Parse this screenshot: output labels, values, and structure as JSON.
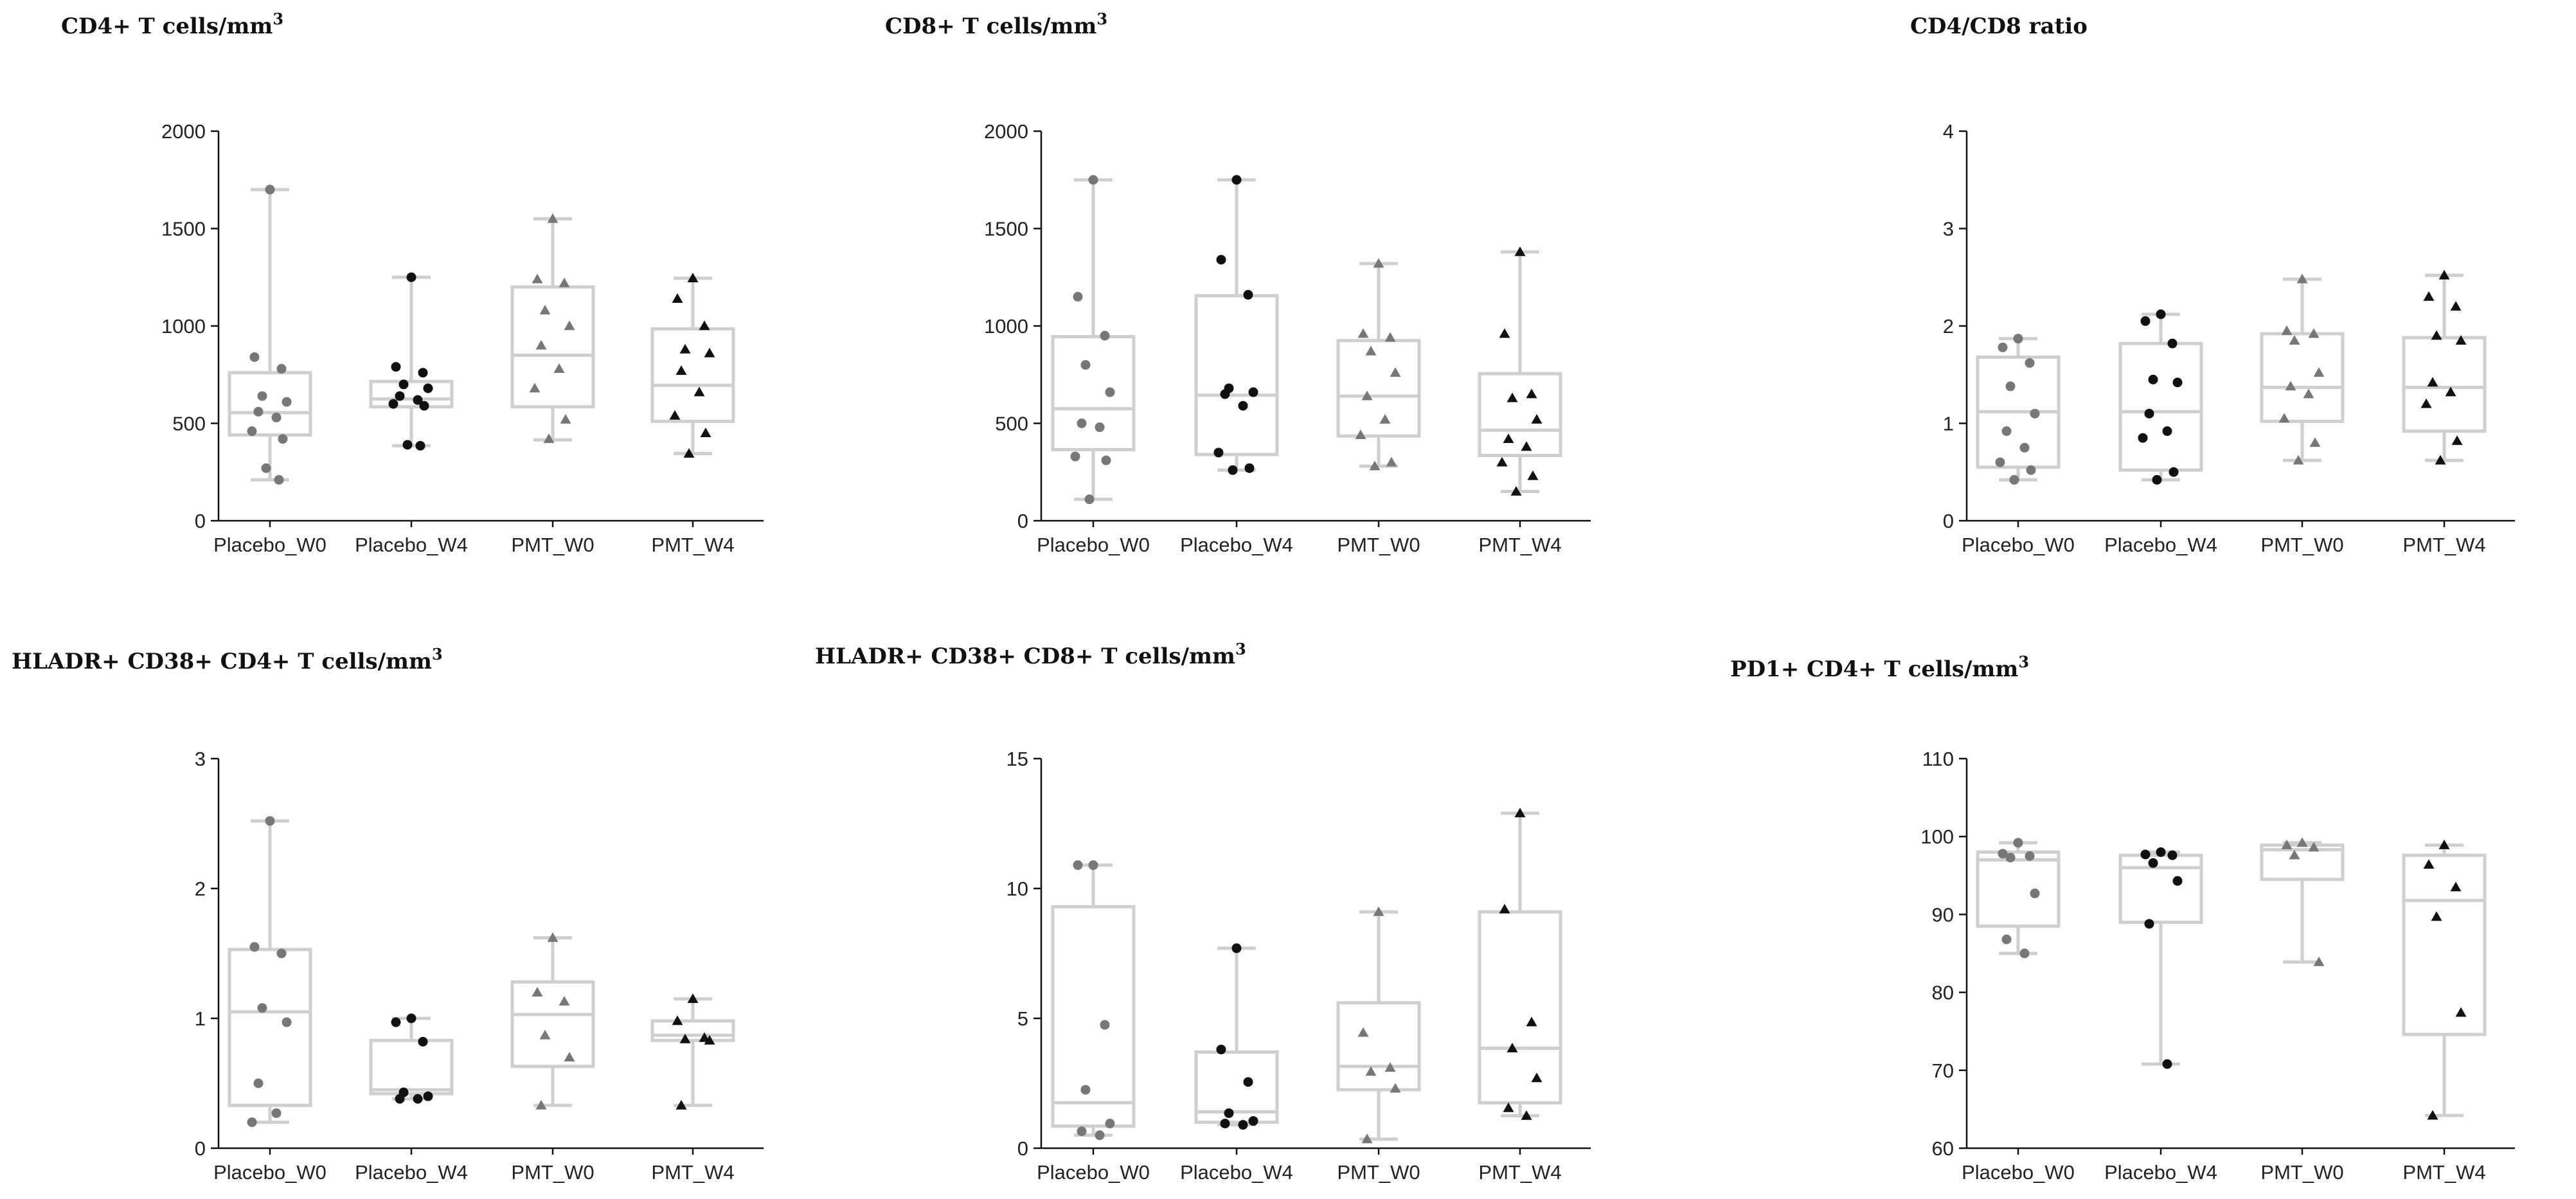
{
  "colors": {
    "box": "#cfcfcf",
    "axis": "#111111",
    "placebo_w0_point": "#777777",
    "placebo_w4_point": "#111111",
    "pmt_w0_point": "#777777",
    "pmt_w4_point": "#111111"
  },
  "marker_shapes": [
    "circle",
    "circle",
    "triangle",
    "triangle"
  ],
  "chart_data": [
    {
      "type": "box",
      "title": "CD4+ T cells/mm",
      "title_superscript": "3",
      "categories": [
        "Placebo_W0",
        "Placebo_W4",
        "PMT_W0",
        "PMT_W4"
      ],
      "ylim": [
        0,
        2000
      ],
      "yticks": [
        0,
        500,
        1000,
        1500,
        2000
      ],
      "boxes": [
        {
          "min": 210,
          "q1": 440,
          "median": 555,
          "q3": 760,
          "max": 1700
        },
        {
          "min": 385,
          "q1": 585,
          "median": 625,
          "q3": 715,
          "max": 1250
        },
        {
          "min": 415,
          "q1": 585,
          "median": 850,
          "q3": 1200,
          "max": 1550
        },
        {
          "min": 345,
          "q1": 510,
          "median": 695,
          "q3": 985,
          "max": 1245
        }
      ],
      "points": [
        [
          1700,
          840,
          780,
          640,
          610,
          560,
          530,
          460,
          420,
          270,
          210
        ],
        [
          1250,
          790,
          760,
          700,
          680,
          640,
          620,
          600,
          590,
          390,
          385
        ],
        [
          1550,
          1240,
          1220,
          1080,
          1000,
          900,
          780,
          680,
          520,
          420
        ],
        [
          1245,
          1140,
          1000,
          880,
          860,
          770,
          660,
          540,
          450,
          345
        ]
      ]
    },
    {
      "type": "box",
      "title": "CD8+ T cells/mm",
      "title_superscript": "3",
      "categories": [
        "Placebo_W0",
        "Placebo_W4",
        "PMT_W0",
        "PMT_W4"
      ],
      "ylim": [
        0,
        2000
      ],
      "yticks": [
        0,
        500,
        1000,
        1500,
        2000
      ],
      "boxes": [
        {
          "min": 110,
          "q1": 365,
          "median": 575,
          "q3": 945,
          "max": 1750
        },
        {
          "min": 260,
          "q1": 340,
          "median": 645,
          "q3": 1155,
          "max": 1750
        },
        {
          "min": 280,
          "q1": 435,
          "median": 640,
          "q3": 925,
          "max": 1320
        },
        {
          "min": 150,
          "q1": 335,
          "median": 465,
          "q3": 755,
          "max": 1380
        }
      ],
      "points": [
        [
          1750,
          1150,
          950,
          800,
          660,
          500,
          480,
          330,
          310,
          110
        ],
        [
          1750,
          1340,
          1160,
          680,
          660,
          650,
          590,
          350,
          270,
          260
        ],
        [
          1320,
          960,
          940,
          870,
          760,
          640,
          520,
          440,
          300,
          280
        ],
        [
          1380,
          960,
          650,
          630,
          520,
          420,
          380,
          300,
          230,
          150
        ]
      ]
    },
    {
      "type": "box",
      "title": "CD4/CD8 ratio",
      "title_superscript": "",
      "categories": [
        "Placebo_W0",
        "Placebo_W4",
        "PMT_W0",
        "PMT_W4"
      ],
      "ylim": [
        0,
        4
      ],
      "yticks": [
        0,
        1,
        2,
        3,
        4
      ],
      "boxes": [
        {
          "min": 0.42,
          "q1": 0.55,
          "median": 1.12,
          "q3": 1.68,
          "max": 1.87
        },
        {
          "min": 0.42,
          "q1": 0.52,
          "median": 1.12,
          "q3": 1.82,
          "max": 2.12
        },
        {
          "min": 0.62,
          "q1": 1.02,
          "median": 1.37,
          "q3": 1.92,
          "max": 2.48
        },
        {
          "min": 0.62,
          "q1": 0.92,
          "median": 1.37,
          "q3": 1.88,
          "max": 2.52
        }
      ],
      "points": [
        [
          1.87,
          1.78,
          1.62,
          1.38,
          1.1,
          0.92,
          0.75,
          0.6,
          0.52,
          0.42
        ],
        [
          2.12,
          2.05,
          1.82,
          1.45,
          1.42,
          1.1,
          0.92,
          0.85,
          0.5,
          0.42
        ],
        [
          2.48,
          1.95,
          1.92,
          1.85,
          1.52,
          1.38,
          1.3,
          1.05,
          0.8,
          0.62
        ],
        [
          2.52,
          2.3,
          2.2,
          1.9,
          1.85,
          1.42,
          1.32,
          1.2,
          0.82,
          0.62
        ]
      ]
    },
    {
      "type": "box",
      "title": "HLADR+ CD38+ CD4+ T cells/mm",
      "title_superscript": "3",
      "categories": [
        "Placebo_W0",
        "Placebo_W4",
        "PMT_W0",
        "PMT_W4"
      ],
      "ylim": [
        0,
        3
      ],
      "yticks": [
        0,
        1,
        2,
        3
      ],
      "boxes": [
        {
          "min": 0.2,
          "q1": 0.33,
          "median": 1.05,
          "q3": 1.53,
          "max": 2.52
        },
        {
          "min": 0.38,
          "q1": 0.42,
          "median": 0.45,
          "q3": 0.83,
          "max": 1.0
        },
        {
          "min": 0.33,
          "q1": 0.63,
          "median": 1.03,
          "q3": 1.28,
          "max": 1.62
        },
        {
          "min": 0.33,
          "q1": 0.83,
          "median": 0.87,
          "q3": 0.98,
          "max": 1.15
        }
      ],
      "points": [
        [
          2.52,
          1.55,
          1.5,
          1.08,
          0.97,
          0.5,
          0.27,
          0.2
        ],
        [
          1.0,
          0.97,
          0.82,
          0.43,
          0.4,
          0.38,
          0.38
        ],
        [
          1.62,
          1.2,
          1.13,
          0.87,
          0.7,
          0.33
        ],
        [
          1.15,
          0.98,
          0.85,
          0.84,
          0.83,
          0.33
        ]
      ]
    },
    {
      "type": "box",
      "title": "HLADR+ CD38+ CD8+ T cells/mm",
      "title_superscript": "3",
      "categories": [
        "Placebo_W0",
        "Placebo_W4",
        "PMT_W0",
        "PMT_W4"
      ],
      "ylim": [
        0,
        15
      ],
      "yticks": [
        0,
        5,
        10,
        15
      ],
      "boxes": [
        {
          "min": 0.5,
          "q1": 0.85,
          "median": 1.75,
          "q3": 9.3,
          "max": 10.9
        },
        {
          "min": 0.9,
          "q1": 1.0,
          "median": 1.4,
          "q3": 3.7,
          "max": 7.7
        },
        {
          "min": 0.35,
          "q1": 2.25,
          "median": 3.15,
          "q3": 5.6,
          "max": 9.1
        },
        {
          "min": 1.25,
          "q1": 1.75,
          "median": 3.85,
          "q3": 9.1,
          "max": 12.9
        }
      ],
      "points": [
        [
          10.9,
          10.9,
          4.75,
          2.25,
          0.95,
          0.65,
          0.5
        ],
        [
          7.7,
          3.8,
          2.55,
          1.35,
          1.05,
          0.95,
          0.9
        ],
        [
          9.1,
          4.45,
          3.1,
          2.95,
          2.3,
          0.35
        ],
        [
          12.9,
          9.2,
          4.85,
          3.85,
          2.7,
          1.55,
          1.25
        ]
      ]
    },
    {
      "type": "box",
      "title": "PD1+ CD4+ T cells/mm",
      "title_superscript": "3",
      "categories": [
        "Placebo_W0",
        "Placebo_W4",
        "PMT_W0",
        "PMT_W4"
      ],
      "ylim": [
        60,
        110
      ],
      "yticks": [
        60,
        70,
        80,
        90,
        100,
        110
      ],
      "boxes": [
        {
          "min": 85,
          "q1": 88.5,
          "median": 97,
          "q3": 98,
          "max": 99.2
        },
        {
          "min": 70.8,
          "q1": 89,
          "median": 96,
          "q3": 97.6,
          "max": 98
        },
        {
          "min": 83.9,
          "q1": 94.5,
          "median": 98.3,
          "q3": 98.9,
          "max": 99.2
        },
        {
          "min": 64.2,
          "q1": 74.6,
          "median": 91.8,
          "q3": 97.6,
          "max": 98.9
        }
      ],
      "points": [
        [
          99.2,
          97.8,
          97.5,
          97.3,
          92.7,
          86.8,
          85
        ],
        [
          98,
          97.7,
          97.6,
          96.6,
          94.3,
          88.8,
          70.8
        ],
        [
          99.2,
          98.9,
          98.6,
          97.6,
          83.9
        ],
        [
          98.9,
          96.4,
          93.5,
          89.7,
          77.4,
          64.2
        ]
      ]
    }
  ]
}
